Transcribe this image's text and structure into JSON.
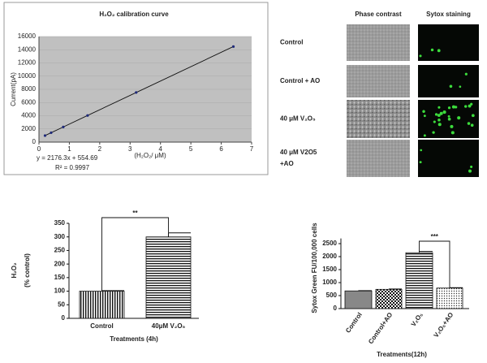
{
  "chart_data": [
    {
      "type": "line",
      "title": "H₂O₂ calibration curve",
      "xlabel": "(H₂O₂/ μM)",
      "ylabel": "Current(pA)",
      "annotations": [
        "y = 2176.3x + 554.69",
        "R² = 0.9997"
      ],
      "x": [
        0.2,
        0.4,
        0.8,
        1.6,
        3.2,
        6.4
      ],
      "values": [
        990,
        1425,
        2296,
        4037,
        7519,
        14483
      ],
      "color": "#1f2a7a",
      "xlim": [
        0,
        7
      ],
      "xticks": [
        0,
        1,
        2,
        3,
        4,
        5,
        6,
        7
      ],
      "ylim": [
        0,
        16000
      ],
      "yticks": [
        0,
        2000,
        4000,
        6000,
        8000,
        10000,
        12000,
        14000,
        16000
      ],
      "grid": true
    },
    {
      "type": "bar",
      "categories": [
        "Control",
        "40μM V₂O₅"
      ],
      "values": [
        100,
        300
      ],
      "errors": [
        2,
        15
      ],
      "ylim": [
        0,
        350
      ],
      "yticks": [
        0,
        50,
        100,
        150,
        200,
        250,
        300,
        350
      ],
      "ylabel": [
        "H₂O₂",
        "(% control)"
      ],
      "xlabel": "Treatments (4h)",
      "annotation": "**"
    },
    {
      "type": "bar",
      "categories": [
        "Control",
        "Control+AO",
        "V₂O₅",
        "V₂O₅+AO"
      ],
      "values": [
        680,
        740,
        2150,
        790
      ],
      "errors": [
        10,
        15,
        50,
        15
      ],
      "ylim": [
        0,
        2700
      ],
      "yticks": [
        0,
        500,
        1000,
        1500,
        2000,
        2500
      ],
      "ylabel": [
        "Sytox Green FU/100,000 cells"
      ],
      "xlabel": "Treatments(12h)",
      "annotation": "***"
    }
  ],
  "image_panel": {
    "columns": [
      "Phase contrast",
      "Sytox staining"
    ],
    "rows": [
      [
        "Control"
      ],
      [
        "Control + AO"
      ],
      [
        "40 μM V₂O₅"
      ],
      [
        "40 μM V2O5",
        "+AO"
      ]
    ]
  }
}
